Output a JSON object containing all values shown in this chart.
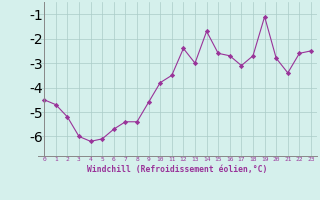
{
  "x": [
    0,
    1,
    2,
    3,
    4,
    5,
    6,
    7,
    8,
    9,
    10,
    11,
    12,
    13,
    14,
    15,
    16,
    17,
    18,
    19,
    20,
    21,
    22,
    23
  ],
  "y": [
    -4.5,
    -4.7,
    -5.2,
    -6.0,
    -6.2,
    -6.1,
    -5.7,
    -5.4,
    -5.4,
    -4.6,
    -3.8,
    -3.5,
    -2.4,
    -3.0,
    -1.7,
    -2.6,
    -2.7,
    -3.1,
    -2.7,
    -1.1,
    -2.8,
    -3.4,
    -2.6,
    -2.5
  ],
  "line_color": "#993399",
  "marker": "D",
  "marker_size": 2.2,
  "background_color": "#d5f0ec",
  "grid_color": "#aaccc8",
  "xlabel": "Windchill (Refroidissement éolien,°C)",
  "xlabel_color": "#993399",
  "tick_color": "#993399",
  "ylim": [
    -6.8,
    -0.5
  ],
  "xlim": [
    -0.5,
    23.5
  ],
  "yticks": [
    -6,
    -5,
    -4,
    -3,
    -2,
    -1
  ],
  "xticks": [
    0,
    1,
    2,
    3,
    4,
    5,
    6,
    7,
    8,
    9,
    10,
    11,
    12,
    13,
    14,
    15,
    16,
    17,
    18,
    19,
    20,
    21,
    22,
    23
  ],
  "spine_color": "#888888",
  "fig_bg": "#d5f0ec",
  "left_spine_x": 0
}
